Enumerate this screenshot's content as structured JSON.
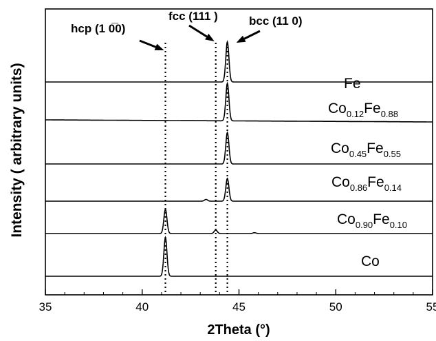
{
  "chart_data": {
    "type": "line",
    "xlabel": "2Theta (°)",
    "ylabel": "Intensity ( arbitrary  units)",
    "xlim": [
      35,
      55
    ],
    "x_ticks": [
      35,
      40,
      45,
      50,
      55
    ],
    "x_tick_labels": [
      "35",
      "40",
      "45",
      "50",
      "55"
    ],
    "y_ticks_shown": false,
    "grid": false,
    "reference_lines": [
      {
        "name": "hcp",
        "label": "hcp (1 0̅0)",
        "x": 41.2
      },
      {
        "name": "fcc",
        "label": "fcc (111 )",
        "x": 43.8
      },
      {
        "name": "bcc",
        "label": "bcc (11 0)",
        "x": 44.4
      }
    ],
    "series": [
      {
        "base": "Fe",
        "parts": [
          {
            "t": "Fe",
            "sub": false
          }
        ],
        "peaks": [
          {
            "x": 44.4,
            "h": 0.92
          }
        ]
      },
      {
        "base": "Co0.12Fe0.88",
        "parts": [
          {
            "t": "Co",
            "sub": false
          },
          {
            "t": "0.12",
            "sub": true
          },
          {
            "t": "Fe",
            "sub": false
          },
          {
            "t": "0.88",
            "sub": true
          }
        ],
        "peaks": [
          {
            "x": 44.4,
            "h": 0.86
          }
        ]
      },
      {
        "base": "Co0.45Fe0.55",
        "parts": [
          {
            "t": "Co",
            "sub": false
          },
          {
            "t": "0.45",
            "sub": true
          },
          {
            "t": "Fe",
            "sub": false
          },
          {
            "t": "0.55",
            "sub": true
          }
        ],
        "peaks": [
          {
            "x": 44.4,
            "h": 0.72
          }
        ]
      },
      {
        "base": "Co0.86Fe0.14",
        "parts": [
          {
            "t": "Co",
            "sub": false
          },
          {
            "t": "0.86",
            "sub": true
          },
          {
            "t": "Fe",
            "sub": false
          },
          {
            "t": "0.14",
            "sub": true
          }
        ],
        "peaks": [
          {
            "x": 44.4,
            "h": 0.52
          },
          {
            "x": 43.3,
            "h": 0.04
          }
        ]
      },
      {
        "base": "Co0.90Fe0.10",
        "parts": [
          {
            "t": "Co",
            "sub": false
          },
          {
            "t": "0.90",
            "sub": true
          },
          {
            "t": "Fe",
            "sub": false
          },
          {
            "t": "0.10",
            "sub": true
          }
        ],
        "peaks": [
          {
            "x": 41.2,
            "h": 0.55
          },
          {
            "x": 43.8,
            "h": 0.08
          },
          {
            "x": 45.8,
            "h": 0.02
          }
        ]
      },
      {
        "base": "Co",
        "parts": [
          {
            "t": "Co",
            "sub": false
          }
        ],
        "peaks": [
          {
            "x": 41.2,
            "h": 0.88
          }
        ]
      }
    ]
  }
}
